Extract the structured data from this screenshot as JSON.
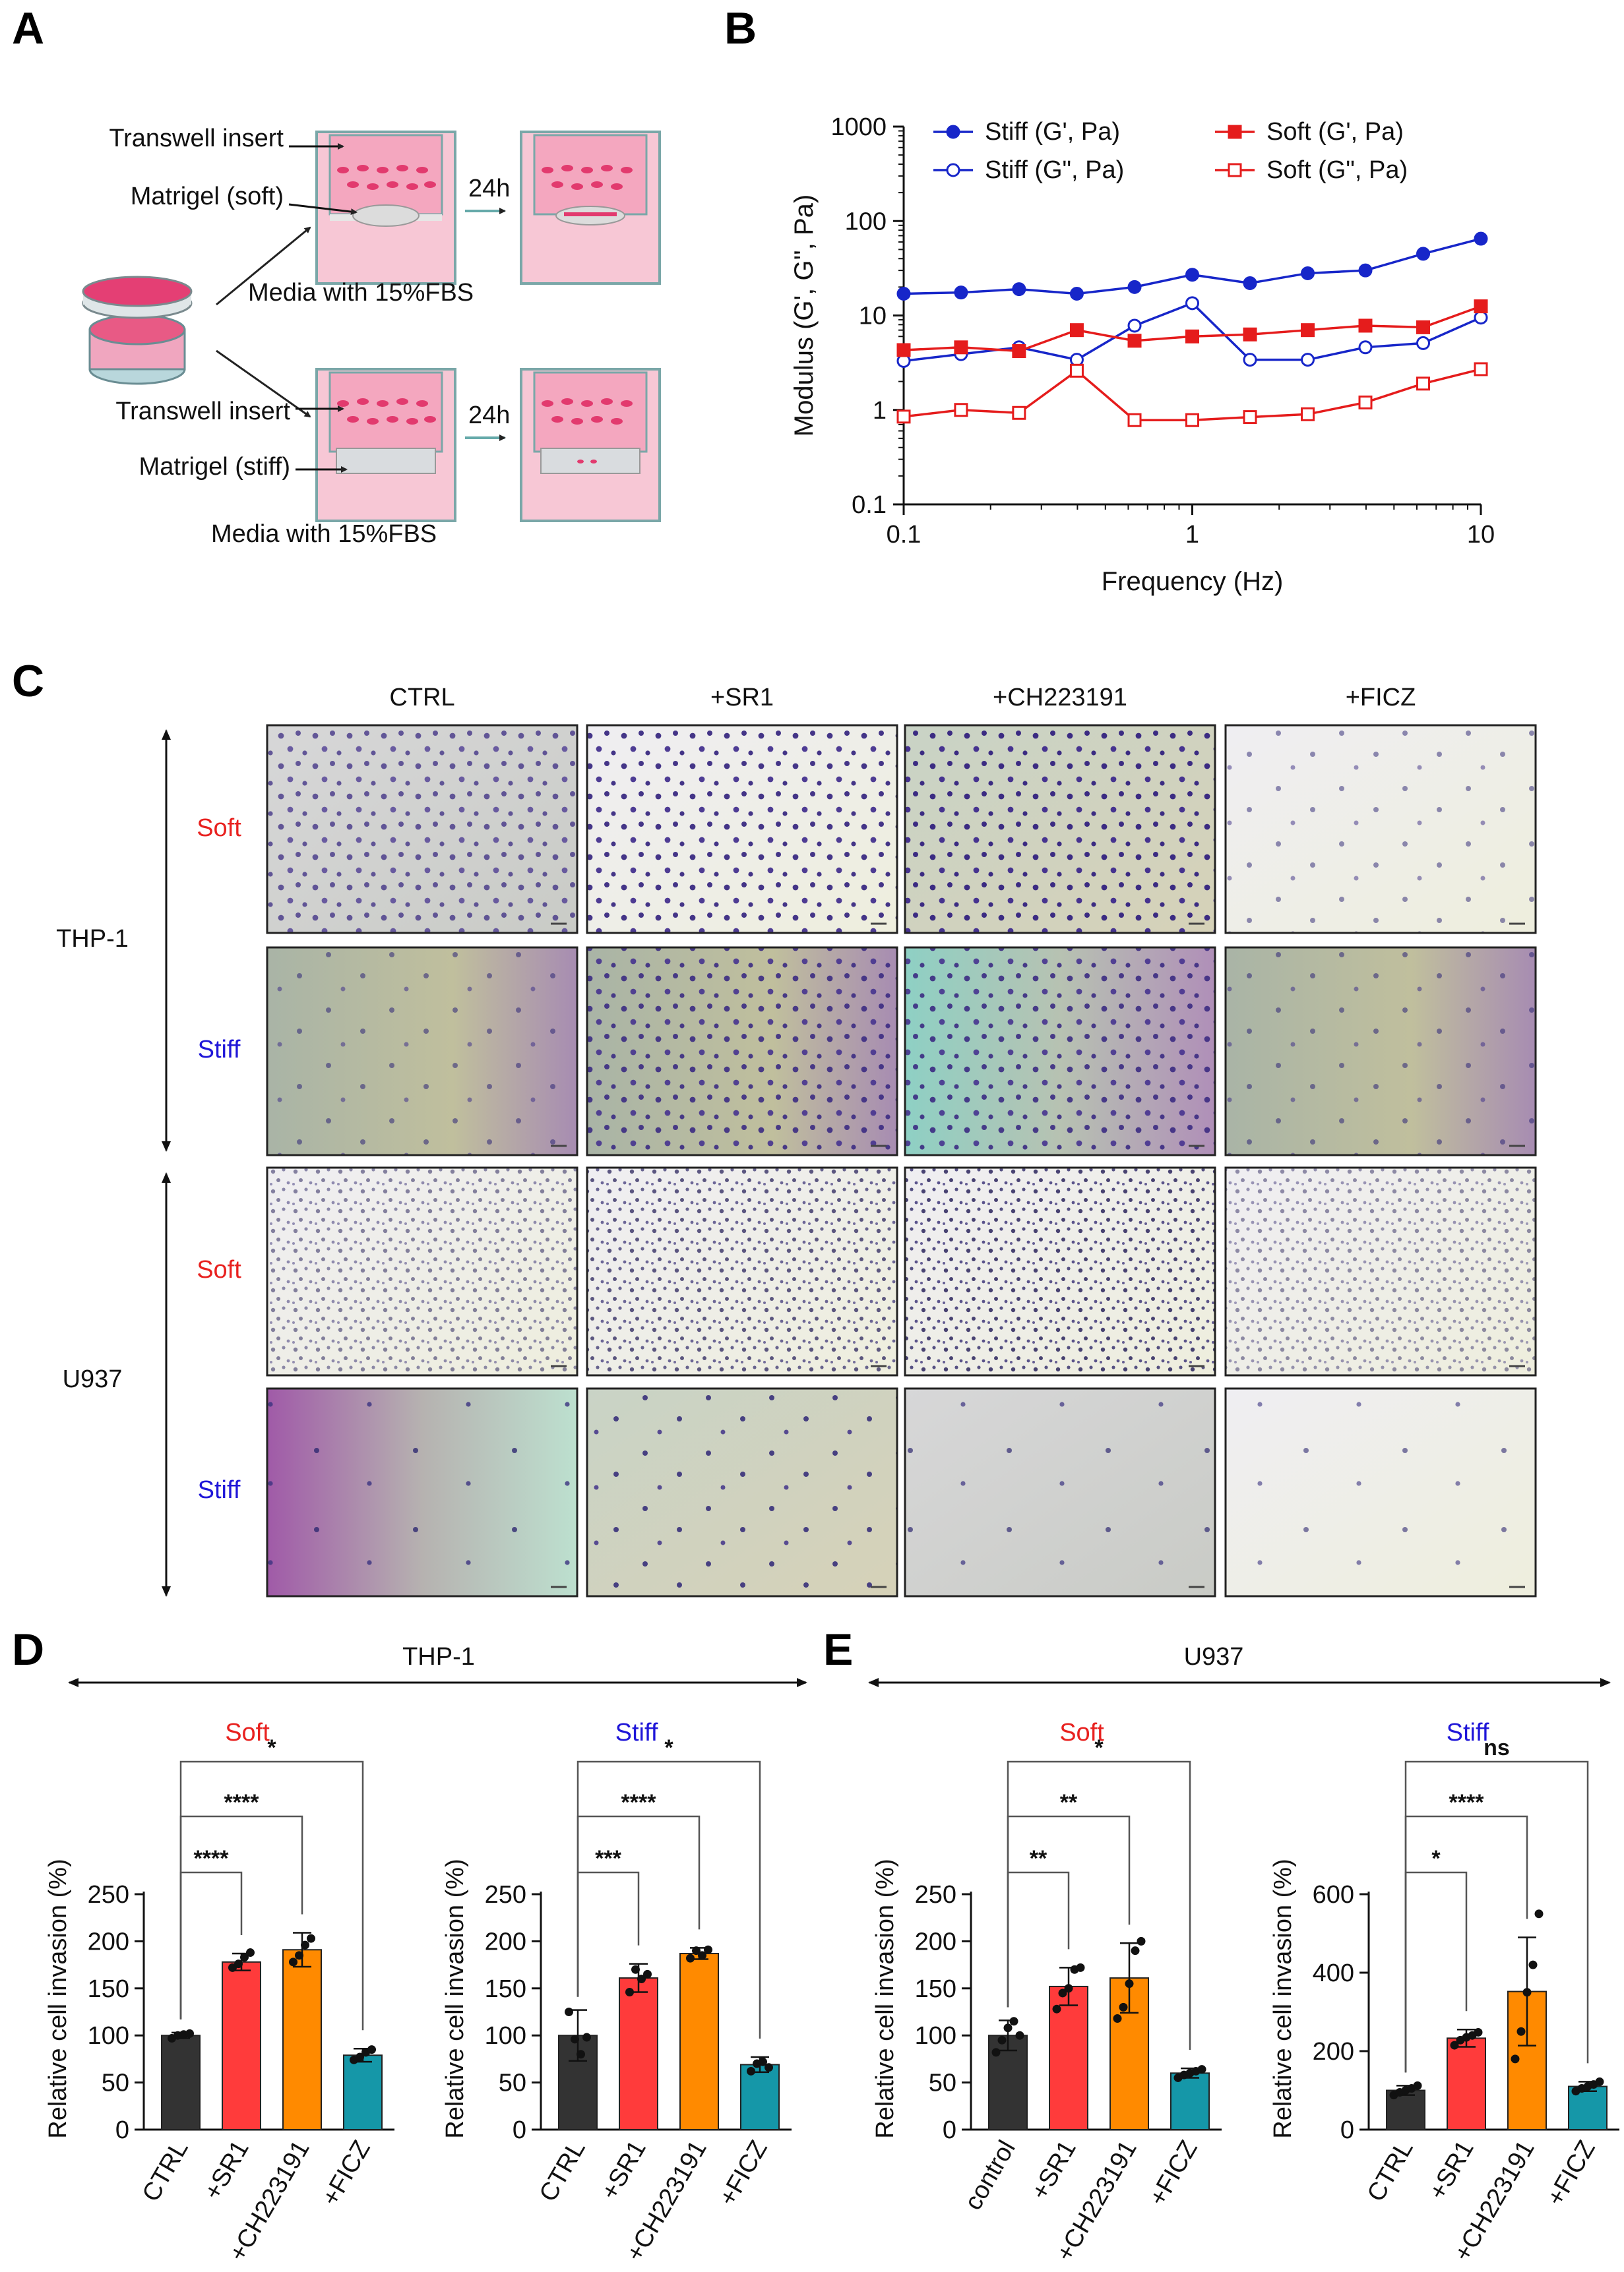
{
  "panels": {
    "A": {
      "label": "A",
      "top_arm": {
        "insert": "Transwell insert",
        "matrigel": "Matrigel (soft)",
        "time": "24h",
        "media": "Media with 15%FBS"
      },
      "bottom_arm": {
        "insert": "Transwell insert",
        "matrigel": "Matrigel (stiff)",
        "time": "24h",
        "media": "Media with 15%FBS"
      }
    },
    "B": {
      "label": "B"
    },
    "C": {
      "label": "C",
      "columns": [
        "CTRL",
        "+SR1",
        "+CH223191",
        "+FICZ"
      ],
      "cell_lines": [
        "THP-1",
        "U937"
      ],
      "conditions": [
        "Soft",
        "Stiff"
      ]
    },
    "D": {
      "label": "D",
      "cell_line": "THP-1"
    },
    "E": {
      "label": "E",
      "cell_line": "U937"
    }
  },
  "colors": {
    "soft_red": "#e8211f",
    "stiff_blue": "#1f16d8",
    "bar_ctrl": "#333333",
    "bar_sr1": "#ff3b3b",
    "bar_ch": "#ff8a00",
    "bar_ficz": "#1597a8",
    "line_blue": "#1726c9",
    "line_red": "#e51c1c"
  },
  "chart_data": [
    {
      "id": "B",
      "type": "line",
      "xlabel": "Frequency (Hz)",
      "ylabel": "Modulus (G', G'', Pa)",
      "xscale": "log",
      "yscale": "log",
      "xlim": [
        0.1,
        10
      ],
      "ylim": [
        0.1,
        1000
      ],
      "xticks": [
        "0.1",
        "1",
        "10"
      ],
      "yticks": [
        "0.1",
        "1",
        "10",
        "100",
        "1000"
      ],
      "x": [
        0.1,
        0.158,
        0.251,
        0.398,
        0.631,
        1.0,
        1.585,
        2.512,
        3.981,
        6.31,
        10.0
      ],
      "legend": "top",
      "series": [
        {
          "name": "Stiff (G', Pa)",
          "color": "#1726c9",
          "marker": "circle",
          "filled": true,
          "values": [
            17,
            17.5,
            19,
            17,
            20,
            27,
            22,
            28,
            30,
            45,
            65
          ]
        },
        {
          "name": "Stiff (G\", Pa)",
          "color": "#1726c9",
          "marker": "circle",
          "filled": false,
          "values": [
            3.3,
            3.9,
            4.6,
            3.4,
            7.8,
            13.5,
            3.4,
            3.4,
            4.6,
            5.1,
            9.5
          ]
        },
        {
          "name": "Soft (G', Pa)",
          "color": "#e51c1c",
          "marker": "square",
          "filled": true,
          "values": [
            4.3,
            4.6,
            4.2,
            7.0,
            5.4,
            6.0,
            6.3,
            7.0,
            7.8,
            7.5,
            12.5
          ]
        },
        {
          "name": "Soft (G\", Pa)",
          "color": "#e51c1c",
          "marker": "square",
          "filled": false,
          "values": [
            0.85,
            1.0,
            0.93,
            2.6,
            0.78,
            0.78,
            0.84,
            0.9,
            1.2,
            1.9,
            2.7
          ]
        }
      ]
    },
    {
      "id": "D-soft",
      "type": "bar",
      "cell_line": "THP-1",
      "title": "Soft",
      "title_color": "#e8211f",
      "ylabel": "Relative cell invasion (%)",
      "ylim": [
        0,
        250
      ],
      "yticks": [
        0,
        50,
        100,
        150,
        200,
        250
      ],
      "categories": [
        "CTRL",
        "+SR1",
        "+CH223191",
        "+FICZ"
      ],
      "values": [
        100,
        178,
        191,
        79
      ],
      "errors": [
        3,
        9,
        18,
        7
      ],
      "points": [
        [
          97,
          100,
          101,
          102
        ],
        [
          172,
          176,
          183,
          188
        ],
        [
          178,
          185,
          196,
          203
        ],
        [
          74,
          77,
          82,
          85
        ]
      ],
      "colors": [
        "#333333",
        "#ff3b3b",
        "#ff8a00",
        "#1597a8"
      ],
      "brackets": [
        {
          "from": 0,
          "to": 1,
          "label": "****"
        },
        {
          "from": 0,
          "to": 2,
          "label": "****"
        },
        {
          "from": 0,
          "to": 3,
          "label": "*"
        }
      ]
    },
    {
      "id": "D-stiff",
      "type": "bar",
      "cell_line": "THP-1",
      "title": "Stiff",
      "title_color": "#1f16d8",
      "ylabel": "Relative cell invasion (%)",
      "ylim": [
        0,
        250
      ],
      "yticks": [
        0,
        50,
        100,
        150,
        200,
        250
      ],
      "categories": [
        "CTRL",
        "+SR1",
        "+CH223191",
        "+FICZ"
      ],
      "values": [
        100,
        161,
        187,
        69
      ],
      "errors": [
        27,
        15,
        6,
        8
      ],
      "points": [
        [
          125,
          96,
          80,
          98
        ],
        [
          146,
          170,
          160,
          165
        ],
        [
          182,
          190,
          185,
          191
        ],
        [
          62,
          70,
          72,
          66
        ]
      ],
      "colors": [
        "#333333",
        "#ff3b3b",
        "#ff8a00",
        "#1597a8"
      ],
      "brackets": [
        {
          "from": 0,
          "to": 1,
          "label": "***"
        },
        {
          "from": 0,
          "to": 2,
          "label": "****"
        },
        {
          "from": 0,
          "to": 3,
          "label": "*"
        }
      ]
    },
    {
      "id": "E-soft",
      "type": "bar",
      "cell_line": "U937",
      "title": "Soft",
      "title_color": "#e8211f",
      "ylabel": "Relative cell invasion (%)",
      "ylim": [
        0,
        250
      ],
      "yticks": [
        0,
        50,
        100,
        150,
        200,
        250
      ],
      "categories": [
        "control",
        "+SR1",
        "+CH223191",
        "+FICZ"
      ],
      "values": [
        100,
        152,
        161,
        60
      ],
      "errors": [
        16,
        20,
        37,
        5
      ],
      "points": [
        [
          82,
          95,
          108,
          115,
          100
        ],
        [
          128,
          145,
          150,
          170,
          172
        ],
        [
          118,
          130,
          155,
          190,
          200
        ],
        [
          55,
          58,
          60,
          62,
          64
        ]
      ],
      "colors": [
        "#333333",
        "#ff3b3b",
        "#ff8a00",
        "#1597a8"
      ],
      "brackets": [
        {
          "from": 0,
          "to": 1,
          "label": "**"
        },
        {
          "from": 0,
          "to": 2,
          "label": "**"
        },
        {
          "from": 0,
          "to": 3,
          "label": "*"
        }
      ]
    },
    {
      "id": "E-stiff",
      "type": "bar",
      "cell_line": "U937",
      "title": "Stiff",
      "title_color": "#1f16d8",
      "ylabel": "Relative cell invasion (%)",
      "ylim": [
        0,
        600
      ],
      "yticks": [
        0,
        200,
        400,
        600
      ],
      "categories": [
        "CTRL",
        "+SR1",
        "+CH223191",
        "+FICZ"
      ],
      "values": [
        100,
        233,
        352,
        110
      ],
      "errors": [
        12,
        22,
        138,
        12
      ],
      "points": [
        [
          88,
          95,
          100,
          105,
          112
        ],
        [
          215,
          228,
          235,
          240,
          248
        ],
        [
          180,
          250,
          350,
          420,
          550
        ],
        [
          98,
          105,
          110,
          115,
          122
        ]
      ],
      "colors": [
        "#333333",
        "#ff3b3b",
        "#ff8a00",
        "#1597a8"
      ],
      "brackets": [
        {
          "from": 0,
          "to": 1,
          "label": "*"
        },
        {
          "from": 0,
          "to": 2,
          "label": "****"
        },
        {
          "from": 0,
          "to": 3,
          "label": "ns"
        }
      ]
    }
  ]
}
